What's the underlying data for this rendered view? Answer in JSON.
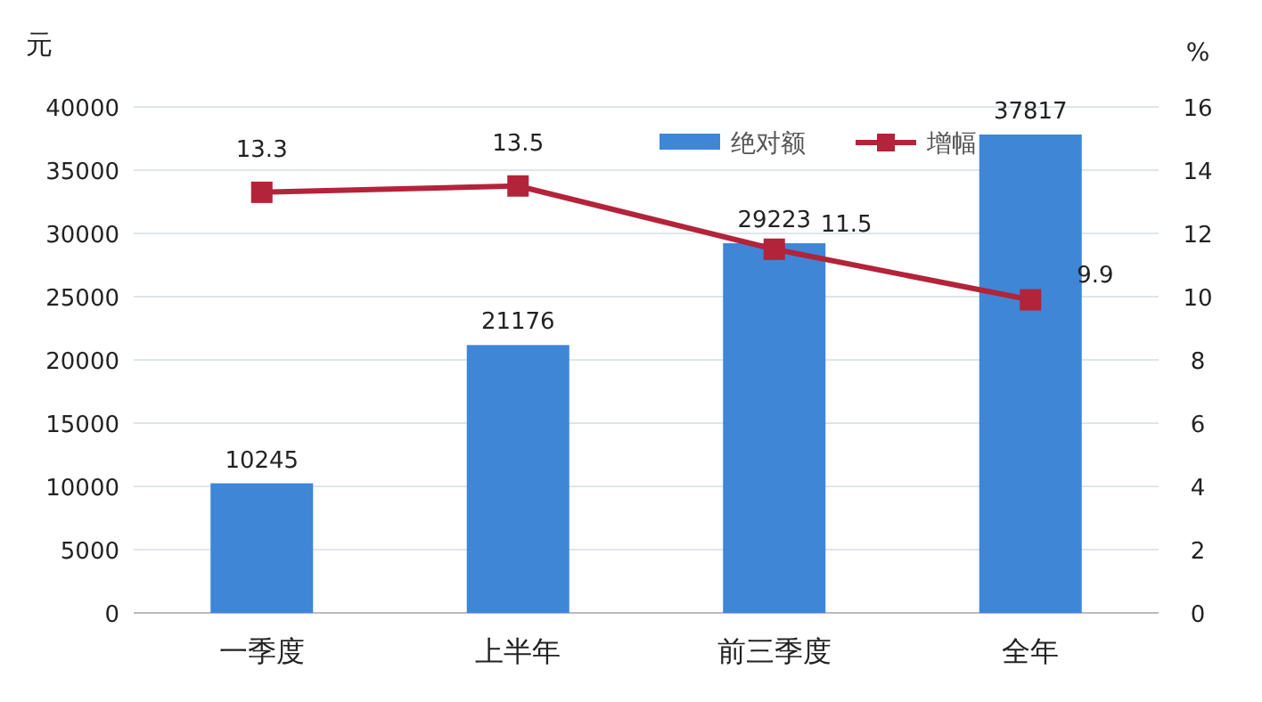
{
  "chart_data": {
    "type": "bar",
    "ylabel": "元",
    "y2label": "%",
    "categories": [
      "一季度",
      "上半年",
      "前三季度",
      "全年"
    ],
    "series": [
      {
        "name": "绝对额",
        "color": "#3f86d6",
        "values": [
          10245,
          21176,
          29223,
          37817
        ]
      },
      {
        "name": "增幅",
        "type": "line",
        "axis": "y2",
        "color": "#b3233a",
        "marker": "square",
        "values": [
          13.3,
          13.5,
          11.5,
          9.9
        ]
      }
    ],
    "ylim": [
      0,
      40000
    ],
    "yticks": [
      0,
      5000,
      10000,
      15000,
      20000,
      25000,
      30000,
      35000,
      40000
    ],
    "y2lim": [
      0,
      16
    ],
    "y2ticks": [
      0,
      2,
      4,
      6,
      8,
      10,
      12,
      14,
      16
    ],
    "grid": "y",
    "legend": "top right",
    "data_labels": true
  }
}
